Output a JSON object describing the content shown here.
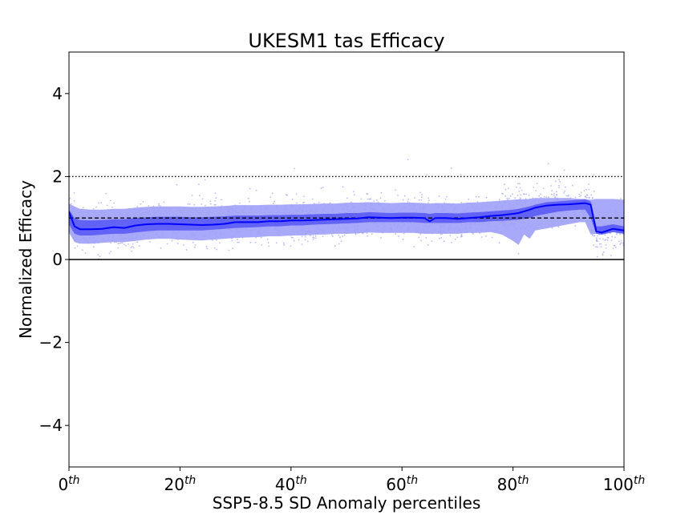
{
  "chart_data": {
    "type": "area",
    "title": "UKESM1 tas Efficacy",
    "xlabel": "SSP5-8.5 SD Anomaly percentiles",
    "ylabel": "Normalized Efficacy",
    "xlim": [
      0,
      100
    ],
    "ylim": [
      -5,
      5
    ],
    "x_ticks": [
      {
        "value": 0,
        "base": "0",
        "sup": "th"
      },
      {
        "value": 20,
        "base": "20",
        "sup": "th"
      },
      {
        "value": 40,
        "base": "40",
        "sup": "th"
      },
      {
        "value": 60,
        "base": "60",
        "sup": "th"
      },
      {
        "value": 80,
        "base": "80",
        "sup": "th"
      },
      {
        "value": 100,
        "base": "100",
        "sup": "th"
      }
    ],
    "y_ticks": [
      {
        "value": -4,
        "label": "−4"
      },
      {
        "value": -2,
        "label": "−2"
      },
      {
        "value": 0,
        "label": "0"
      },
      {
        "value": 2,
        "label": "2"
      },
      {
        "value": 4,
        "label": "4"
      }
    ],
    "grid": false,
    "reference_lines": [
      {
        "y": 0,
        "style": "solid",
        "color": "#000000"
      },
      {
        "y": 1,
        "style": "dashed",
        "color": "#000000"
      },
      {
        "y": 2,
        "style": "dotted",
        "color": "#000000"
      }
    ],
    "colors": {
      "median": "#0000ff",
      "inner_band": "#5a5af5",
      "outer_band": "#a0a0f8",
      "scatter": "#8c8cf0"
    },
    "x": [
      0,
      1,
      2,
      4,
      6,
      8,
      10,
      12,
      14,
      16,
      18,
      20,
      22,
      24,
      26,
      28,
      30,
      32,
      34,
      36,
      38,
      40,
      42,
      44,
      46,
      48,
      50,
      52,
      54,
      56,
      58,
      60,
      62,
      64,
      65,
      66,
      68,
      70,
      72,
      74,
      76,
      78,
      80,
      81,
      82,
      83,
      84,
      86,
      88,
      90,
      92,
      93,
      94,
      95,
      96,
      98,
      100
    ],
    "series": [
      {
        "name": "",
        "role": "median",
        "values": [
          1.15,
          0.8,
          0.73,
          0.73,
          0.74,
          0.78,
          0.76,
          0.82,
          0.85,
          0.86,
          0.86,
          0.85,
          0.84,
          0.83,
          0.84,
          0.86,
          0.9,
          0.9,
          0.9,
          0.92,
          0.92,
          0.94,
          0.94,
          0.95,
          0.96,
          0.97,
          0.98,
          0.99,
          1.02,
          1.01,
          1.0,
          1.01,
          1.01,
          1.0,
          0.92,
          1.0,
          1.0,
          0.98,
          1.0,
          1.02,
          1.05,
          1.07,
          1.1,
          1.12,
          1.16,
          1.2,
          1.25,
          1.3,
          1.32,
          1.33,
          1.35,
          1.36,
          1.32,
          0.68,
          0.65,
          0.74,
          0.7
        ]
      },
      {
        "name": "",
        "role": "inner_band_lower",
        "values": [
          0.85,
          0.62,
          0.58,
          0.58,
          0.6,
          0.62,
          0.62,
          0.65,
          0.68,
          0.7,
          0.7,
          0.7,
          0.7,
          0.7,
          0.72,
          0.74,
          0.76,
          0.77,
          0.78,
          0.8,
          0.8,
          0.82,
          0.82,
          0.84,
          0.85,
          0.86,
          0.87,
          0.88,
          0.9,
          0.9,
          0.9,
          0.9,
          0.9,
          0.88,
          0.88,
          0.88,
          0.88,
          0.88,
          0.9,
          0.9,
          0.92,
          0.93,
          0.95,
          0.96,
          0.98,
          1.0,
          1.05,
          1.1,
          1.15,
          1.18,
          1.2,
          1.2,
          1.0,
          0.62,
          0.6,
          0.66,
          0.62
        ]
      },
      {
        "name": "",
        "role": "inner_band_upper",
        "values": [
          1.2,
          1.0,
          0.95,
          0.94,
          0.95,
          0.97,
          0.97,
          1.0,
          1.02,
          1.03,
          1.03,
          1.03,
          1.02,
          1.02,
          1.03,
          1.04,
          1.06,
          1.06,
          1.06,
          1.07,
          1.07,
          1.08,
          1.08,
          1.09,
          1.1,
          1.1,
          1.12,
          1.12,
          1.14,
          1.13,
          1.12,
          1.13,
          1.13,
          1.12,
          1.1,
          1.12,
          1.12,
          1.11,
          1.13,
          1.14,
          1.16,
          1.18,
          1.2,
          1.22,
          1.25,
          1.28,
          1.32,
          1.38,
          1.4,
          1.42,
          1.44,
          1.45,
          1.4,
          0.8,
          0.8,
          0.85,
          0.8
        ]
      },
      {
        "name": "",
        "role": "outer_band_lower",
        "values": [
          0.65,
          0.42,
          0.38,
          0.38,
          0.4,
          0.42,
          0.42,
          0.45,
          0.48,
          0.5,
          0.5,
          0.48,
          0.47,
          0.46,
          0.48,
          0.5,
          0.52,
          0.53,
          0.54,
          0.56,
          0.56,
          0.58,
          0.58,
          0.6,
          0.6,
          0.62,
          0.62,
          0.63,
          0.65,
          0.64,
          0.64,
          0.64,
          0.64,
          0.62,
          0.62,
          0.62,
          0.62,
          0.62,
          0.64,
          0.64,
          0.66,
          0.6,
          0.45,
          0.35,
          0.6,
          0.5,
          0.7,
          0.75,
          0.8,
          0.85,
          0.9,
          0.9,
          0.6,
          0.62,
          0.6,
          0.66,
          0.62
        ]
      },
      {
        "name": "",
        "role": "outer_band_upper",
        "values": [
          1.35,
          1.28,
          1.22,
          1.2,
          1.2,
          1.22,
          1.22,
          1.25,
          1.27,
          1.28,
          1.28,
          1.28,
          1.27,
          1.27,
          1.28,
          1.29,
          1.31,
          1.31,
          1.31,
          1.32,
          1.32,
          1.33,
          1.33,
          1.34,
          1.35,
          1.35,
          1.37,
          1.37,
          1.38,
          1.37,
          1.36,
          1.37,
          1.37,
          1.36,
          1.35,
          1.36,
          1.36,
          1.35,
          1.37,
          1.38,
          1.4,
          1.42,
          1.44,
          1.45,
          1.45,
          1.46,
          1.48,
          1.48,
          1.48,
          1.48,
          1.46,
          1.46,
          1.44,
          1.46,
          1.46,
          1.46,
          1.44
        ]
      }
    ]
  }
}
